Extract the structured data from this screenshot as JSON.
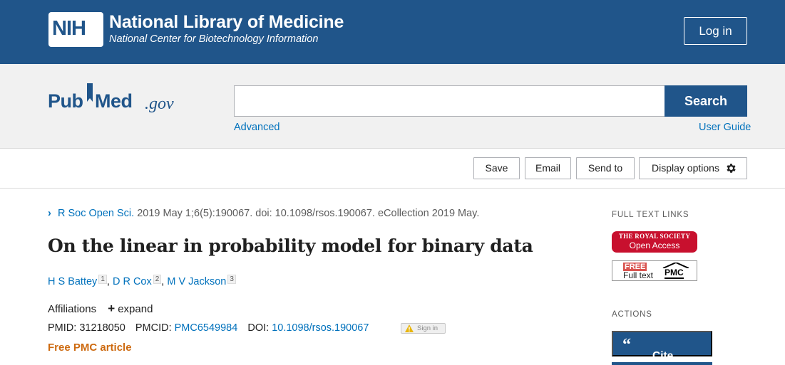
{
  "header": {
    "logo_text": "NIH",
    "title": "National Library of Medicine",
    "subtitle": "National Center for Biotechnology Information",
    "login_label": "Log in"
  },
  "search": {
    "logo_pub": "Pub",
    "logo_med": "Med",
    "logo_gov": ".gov",
    "input_value": "",
    "button_label": "Search",
    "advanced_label": "Advanced",
    "user_guide_label": "User Guide"
  },
  "toolbar": {
    "save_label": "Save",
    "email_label": "Email",
    "send_to_label": "Send to",
    "display_options_label": "Display options"
  },
  "article": {
    "journal": "R Soc Open Sci.",
    "citation": " 2019 May 1;6(5):190067. doi: 10.1098/rsos.190067. eCollection 2019 May.",
    "title": "On the linear in probability model for binary data",
    "authors": [
      {
        "name": "H S Battey",
        "aff": "1"
      },
      {
        "name": "D R Cox",
        "aff": "2"
      },
      {
        "name": "M V Jackson",
        "aff": "3"
      }
    ],
    "affiliations_label": "Affiliations",
    "expand_label": "expand",
    "pmid_label": "PMID:",
    "pmid_value": "31218050",
    "pmcid_label": "PMCID:",
    "pmcid_value": "PMC6549984",
    "doi_label": "DOI:",
    "doi_value": "10.1098/rsos.190067",
    "signin_label": "Sign in",
    "free_pmc_label": "Free PMC article"
  },
  "sidebar": {
    "full_text_links_heading": "FULL TEXT LINKS",
    "royal_society_top": "THE ROYAL SOCIETY",
    "royal_society_bottom": "Open Access",
    "pmc_free": "FREE",
    "pmc_full_text": "Full text",
    "pmc_label": "PMC",
    "actions_heading": "ACTIONS",
    "cite_label": "Cite",
    "cite_icon": "“"
  },
  "colors": {
    "nih_blue": "#20558a",
    "link_blue": "#0071bc",
    "free_pmc_orange": "#cd6a10",
    "royal_red": "#c8102e"
  }
}
